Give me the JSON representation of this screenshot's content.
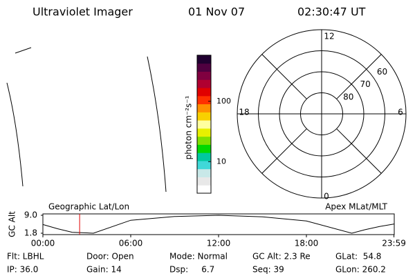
{
  "header": {
    "title": "Ultraviolet Imager",
    "date": "01 Nov 07",
    "time": "02:30:47 UT"
  },
  "colorbar": {
    "label": "photon cm⁻²s⁻¹",
    "log": true,
    "clim": [
      3,
      580
    ],
    "ticks": [
      10,
      100
    ],
    "colors": [
      "#ffffff",
      "#e8e8e8",
      "#c8e8e8",
      "#40d8d8",
      "#00c8a0",
      "#00d800",
      "#80e000",
      "#e8f000",
      "#ffffa0",
      "#f8d000",
      "#ff9000",
      "#ff3000",
      "#e00000",
      "#b00030",
      "#800040",
      "#500040",
      "#200030"
    ]
  },
  "polar": {
    "mlt_labels": [
      "12",
      "6",
      "0",
      "18"
    ],
    "lat_labels": [
      80,
      70,
      60
    ]
  },
  "chart_data": {
    "type": "line",
    "y_label": "GC Alt",
    "annotations": [
      "Geographic Lat/Lon",
      "Apex MLat/MLT"
    ],
    "x": [
      0,
      1,
      2,
      3.45,
      6,
      9,
      12,
      15,
      18,
      21.1,
      22,
      23,
      24
    ],
    "values": [
      5.3,
      3.6,
      2.2,
      1.8,
      7.0,
      8.5,
      9.0,
      8.4,
      6.7,
      1.8,
      3.2,
      4.5,
      5.5
    ],
    "color": "#000000",
    "marker_x": 2.51,
    "marker_color": "#e00000",
    "xlim": [
      0,
      24
    ],
    "ylim": [
      1.8,
      9.0
    ],
    "xticks": [
      {
        "value": 0,
        "label": "00:00"
      },
      {
        "value": 6,
        "label": "06:00"
      },
      {
        "value": 12,
        "label": "12:00"
      },
      {
        "value": 18,
        "label": "18:00"
      },
      {
        "value": 23.98,
        "label": "23:59"
      }
    ],
    "yticks": [
      {
        "value": 9.0,
        "label": "9.0"
      },
      1.8
    ]
  },
  "footer": {
    "rows": [
      [
        "Flt: LBHL",
        "Door: Open",
        "Mode: Normal",
        "GC Alt: 2.3 Re",
        "GLat:  54.8"
      ],
      [
        "IP: 36.0",
        "Gain: 14",
        "Dsp:     6.7",
        "Seq: 39",
        "GLon: 260.2"
      ]
    ]
  }
}
